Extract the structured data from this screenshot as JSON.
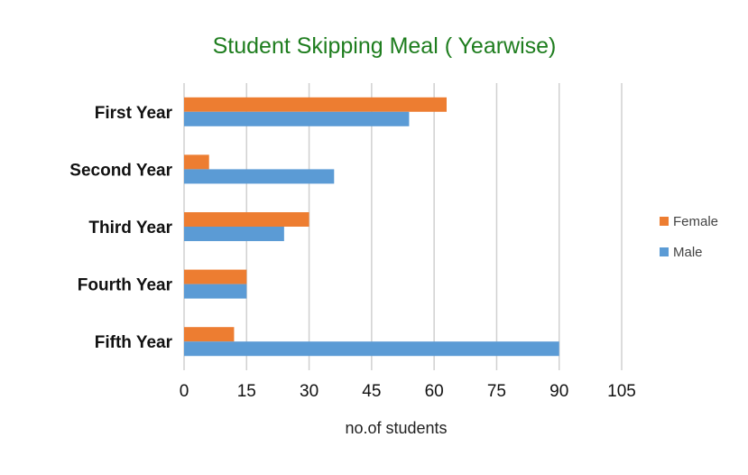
{
  "chart_data": {
    "type": "bar",
    "orientation": "horizontal",
    "title": "Student Skipping Meal ( Yearwise)",
    "xlabel": "no.of students",
    "ylabel": "",
    "categories": [
      "First Year",
      "Second Year",
      "Third Year",
      "Fourth Year",
      "Fifth Year"
    ],
    "series": [
      {
        "name": "Female",
        "color": "#ed7d31",
        "values": [
          63,
          6,
          30,
          15,
          12
        ]
      },
      {
        "name": "Male",
        "color": "#5b9bd5",
        "values": [
          54,
          36,
          24,
          15,
          90
        ]
      }
    ],
    "xlim": [
      0,
      105
    ],
    "xticks": [
      0,
      15,
      30,
      45,
      60,
      75,
      90,
      105
    ],
    "grid": true,
    "legend_position": "right"
  }
}
